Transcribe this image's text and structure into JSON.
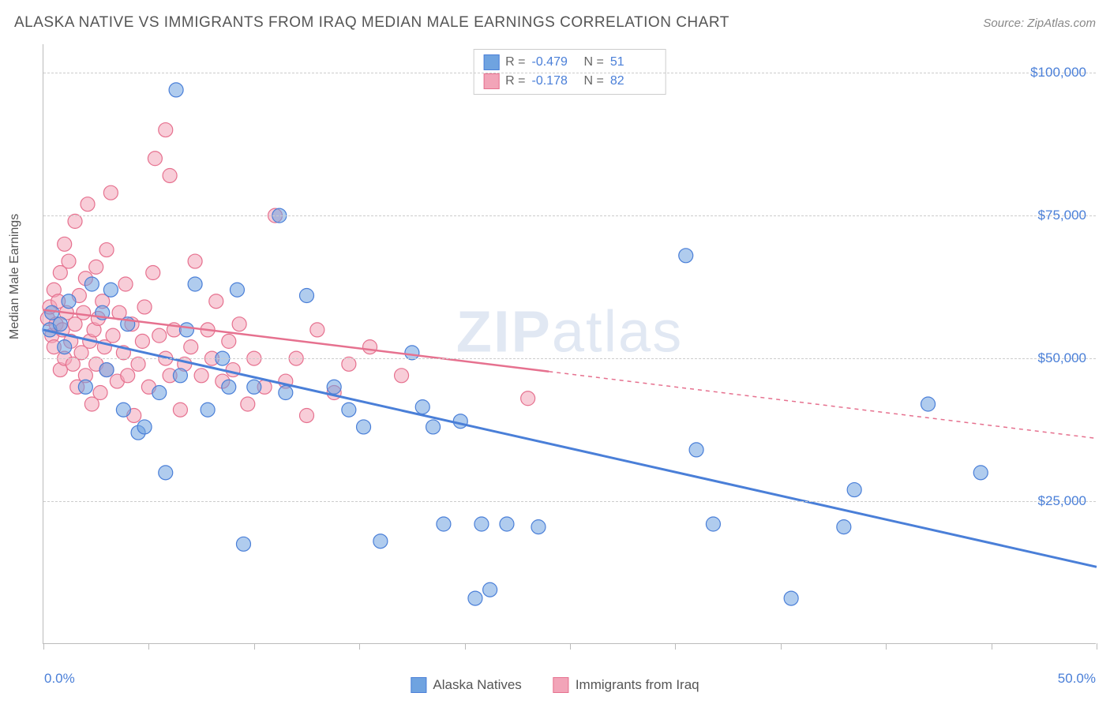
{
  "header": {
    "title": "ALASKA NATIVE VS IMMIGRANTS FROM IRAQ MEDIAN MALE EARNINGS CORRELATION CHART",
    "source_prefix": "Source: ",
    "source_name": "ZipAtlas.com"
  },
  "watermark": {
    "part1": "ZIP",
    "part2": "atlas"
  },
  "chart": {
    "type": "scatter-with-regression",
    "background_color": "#ffffff",
    "grid_color": "#cccccc",
    "axis_color": "#bbbbbb",
    "xlim": [
      0,
      50
    ],
    "ylim": [
      0,
      105000
    ],
    "y_ticks": [
      25000,
      50000,
      75000,
      100000
    ],
    "y_tick_labels": [
      "$25,000",
      "$50,000",
      "$75,000",
      "$100,000"
    ],
    "x_tick_positions": [
      0,
      5,
      10,
      15,
      20,
      25,
      30,
      35,
      40,
      45,
      50
    ],
    "x_axis_labels": {
      "left": "0.0%",
      "right": "50.0%"
    },
    "ylabel": "Median Male Earnings",
    "marker_radius": 9,
    "marker_opacity": 0.55,
    "series": [
      {
        "name": "Alaska Natives",
        "color": "#6fa3e0",
        "stroke": "#4a7fd8",
        "R": "-0.479",
        "N": "51",
        "regression": {
          "x1": 0,
          "y1": 55000,
          "x2": 50,
          "y2": 13500,
          "dashed_from_x": null,
          "line_width": 3
        },
        "points": [
          [
            0.3,
            55000
          ],
          [
            0.4,
            58000
          ],
          [
            0.8,
            56000
          ],
          [
            1.0,
            52000
          ],
          [
            1.2,
            60000
          ],
          [
            2.0,
            45000
          ],
          [
            2.3,
            63000
          ],
          [
            2.8,
            58000
          ],
          [
            3.0,
            48000
          ],
          [
            3.2,
            62000
          ],
          [
            3.8,
            41000
          ],
          [
            4.0,
            56000
          ],
          [
            4.5,
            37000
          ],
          [
            4.8,
            38000
          ],
          [
            5.5,
            44000
          ],
          [
            5.8,
            30000
          ],
          [
            6.3,
            97000
          ],
          [
            6.5,
            47000
          ],
          [
            6.8,
            55000
          ],
          [
            7.2,
            63000
          ],
          [
            7.8,
            41000
          ],
          [
            8.5,
            50000
          ],
          [
            8.8,
            45000
          ],
          [
            9.2,
            62000
          ],
          [
            9.5,
            17500
          ],
          [
            10.0,
            45000
          ],
          [
            11.2,
            75000
          ],
          [
            11.5,
            44000
          ],
          [
            12.5,
            61000
          ],
          [
            13.8,
            45000
          ],
          [
            14.5,
            41000
          ],
          [
            15.2,
            38000
          ],
          [
            16.0,
            18000
          ],
          [
            17.5,
            51000
          ],
          [
            18.0,
            41500
          ],
          [
            18.5,
            38000
          ],
          [
            19.0,
            21000
          ],
          [
            19.8,
            39000
          ],
          [
            20.5,
            8000
          ],
          [
            20.8,
            21000
          ],
          [
            21.2,
            9500
          ],
          [
            22.0,
            21000
          ],
          [
            23.5,
            20500
          ],
          [
            30.5,
            68000
          ],
          [
            31.0,
            34000
          ],
          [
            31.8,
            21000
          ],
          [
            35.5,
            8000
          ],
          [
            38.0,
            20500
          ],
          [
            38.5,
            27000
          ],
          [
            42.0,
            42000
          ],
          [
            44.5,
            30000
          ]
        ]
      },
      {
        "name": "Immigrants from Iraq",
        "color": "#f2a4b8",
        "stroke": "#e6718f",
        "R": "-0.178",
        "N": "82",
        "regression": {
          "x1": 0,
          "y1": 58500,
          "x2": 50,
          "y2": 36000,
          "dashed_from_x": 24,
          "line_width": 2.5
        },
        "points": [
          [
            0.2,
            57000
          ],
          [
            0.3,
            59000
          ],
          [
            0.4,
            54000
          ],
          [
            0.5,
            62000
          ],
          [
            0.5,
            52000
          ],
          [
            0.6,
            56000
          ],
          [
            0.7,
            60000
          ],
          [
            0.8,
            48000
          ],
          [
            0.8,
            65000
          ],
          [
            0.9,
            55000
          ],
          [
            1.0,
            70000
          ],
          [
            1.0,
            50000
          ],
          [
            1.1,
            58000
          ],
          [
            1.2,
            67000
          ],
          [
            1.3,
            53000
          ],
          [
            1.4,
            49000
          ],
          [
            1.5,
            74000
          ],
          [
            1.5,
            56000
          ],
          [
            1.6,
            45000
          ],
          [
            1.7,
            61000
          ],
          [
            1.8,
            51000
          ],
          [
            1.9,
            58000
          ],
          [
            2.0,
            47000
          ],
          [
            2.0,
            64000
          ],
          [
            2.1,
            77000
          ],
          [
            2.2,
            53000
          ],
          [
            2.3,
            42000
          ],
          [
            2.4,
            55000
          ],
          [
            2.5,
            49000
          ],
          [
            2.5,
            66000
          ],
          [
            2.6,
            57000
          ],
          [
            2.7,
            44000
          ],
          [
            2.8,
            60000
          ],
          [
            2.9,
            52000
          ],
          [
            3.0,
            48000
          ],
          [
            3.0,
            69000
          ],
          [
            3.2,
            79000
          ],
          [
            3.3,
            54000
          ],
          [
            3.5,
            46000
          ],
          [
            3.6,
            58000
          ],
          [
            3.8,
            51000
          ],
          [
            3.9,
            63000
          ],
          [
            4.0,
            47000
          ],
          [
            4.2,
            56000
          ],
          [
            4.3,
            40000
          ],
          [
            4.5,
            49000
          ],
          [
            4.7,
            53000
          ],
          [
            4.8,
            59000
          ],
          [
            5.0,
            45000
          ],
          [
            5.2,
            65000
          ],
          [
            5.3,
            85000
          ],
          [
            5.5,
            54000
          ],
          [
            5.8,
            90000
          ],
          [
            5.8,
            50000
          ],
          [
            6.0,
            47000
          ],
          [
            6.0,
            82000
          ],
          [
            6.2,
            55000
          ],
          [
            6.5,
            41000
          ],
          [
            6.7,
            49000
          ],
          [
            7.0,
            52000
          ],
          [
            7.2,
            67000
          ],
          [
            7.5,
            47000
          ],
          [
            7.8,
            55000
          ],
          [
            8.0,
            50000
          ],
          [
            8.2,
            60000
          ],
          [
            8.5,
            46000
          ],
          [
            8.8,
            53000
          ],
          [
            9.0,
            48000
          ],
          [
            9.3,
            56000
          ],
          [
            9.7,
            42000
          ],
          [
            10.0,
            50000
          ],
          [
            10.5,
            45000
          ],
          [
            11.0,
            75000
          ],
          [
            11.5,
            46000
          ],
          [
            12.0,
            50000
          ],
          [
            12.5,
            40000
          ],
          [
            13.0,
            55000
          ],
          [
            13.8,
            44000
          ],
          [
            14.5,
            49000
          ],
          [
            15.5,
            52000
          ],
          [
            17.0,
            47000
          ],
          [
            23.0,
            43000
          ]
        ]
      }
    ],
    "top_legend_labels": {
      "R": "R =",
      "N": "N ="
    },
    "bottom_legend": [
      "Alaska Natives",
      "Immigrants from Iraq"
    ]
  }
}
